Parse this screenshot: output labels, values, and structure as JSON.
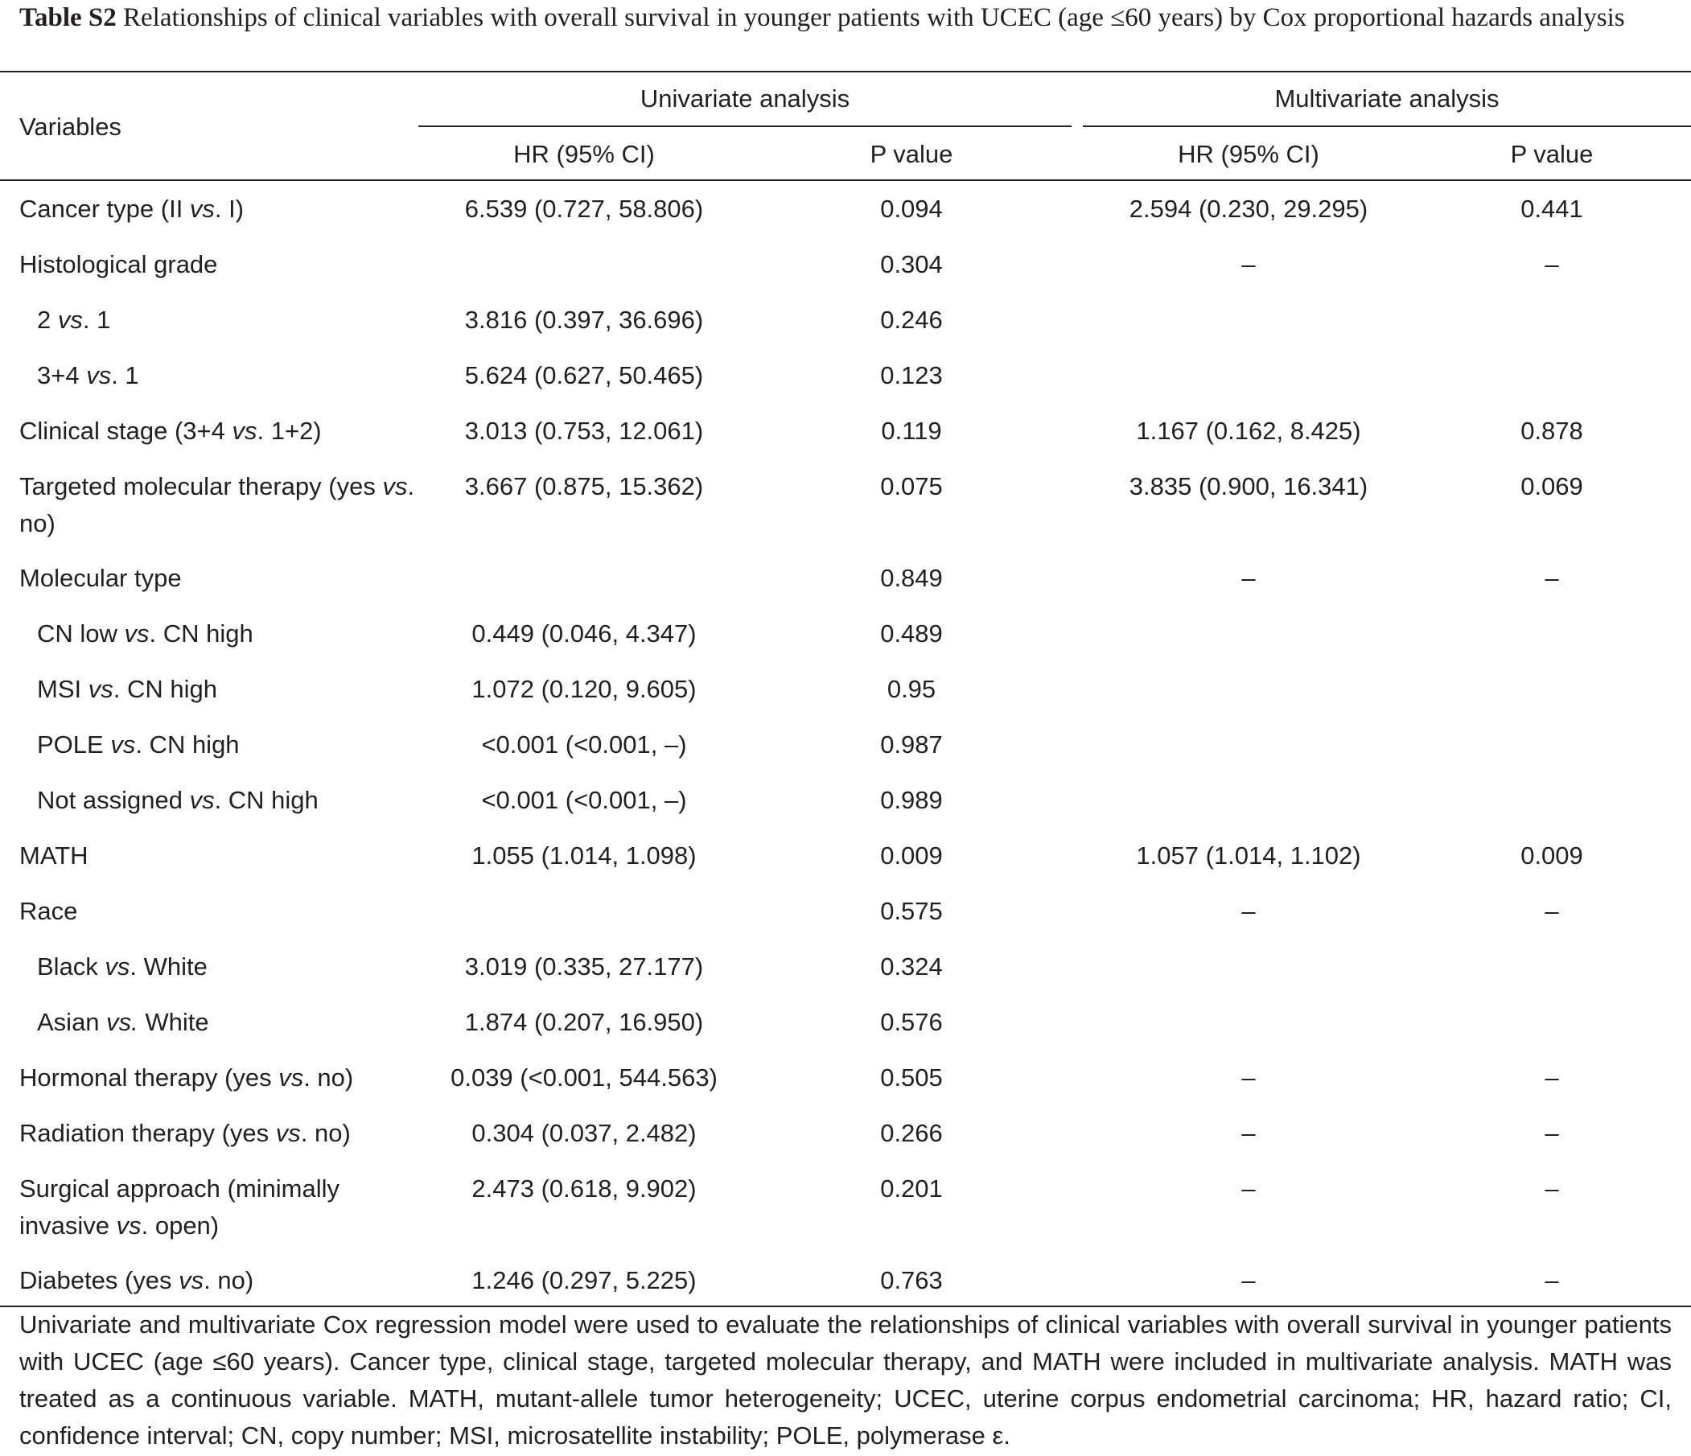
{
  "caption": {
    "label": "Table S2",
    "text": "Relationships of clinical variables with overall survival in younger patients with UCEC (age ≤60 years) by Cox proportional hazards analysis"
  },
  "header": {
    "variables": "Variables",
    "univariate": "Univariate analysis",
    "multivariate": "Multivariate analysis",
    "hr_ci": "HR (95% CI)",
    "p_value": "P value"
  },
  "rows": [
    {
      "pre": "Cancer type (II ",
      "vs": "vs",
      "post": ". I)",
      "indent": false,
      "uni_hr": "6.539 (0.727, 58.806)",
      "uni_p": "0.094",
      "multi_hr": "2.594 (0.230, 29.295)",
      "multi_p": "0.441"
    },
    {
      "pre": "Histological grade",
      "vs": "",
      "post": "",
      "indent": false,
      "uni_hr": "",
      "uni_p": "0.304",
      "multi_hr": "–",
      "multi_p": "–"
    },
    {
      "pre": "2 ",
      "vs": "vs",
      "post": ". 1",
      "indent": true,
      "uni_hr": "3.816 (0.397, 36.696)",
      "uni_p": "0.246",
      "multi_hr": "",
      "multi_p": ""
    },
    {
      "pre": "3+4 ",
      "vs": "vs",
      "post": ". 1",
      "indent": true,
      "uni_hr": "5.624 (0.627, 50.465)",
      "uni_p": "0.123",
      "multi_hr": "",
      "multi_p": ""
    },
    {
      "pre": "Clinical stage (3+4 ",
      "vs": "vs",
      "post": ". 1+2)",
      "indent": false,
      "uni_hr": "3.013 (0.753, 12.061)",
      "uni_p": "0.119",
      "multi_hr": "1.167 (0.162, 8.425)",
      "multi_p": "0.878"
    },
    {
      "pre": "Targeted molecular therapy (yes ",
      "vs": "vs",
      "post": ". no)",
      "indent": false,
      "uni_hr": "3.667 (0.875, 15.362)",
      "uni_p": "0.075",
      "multi_hr": "3.835 (0.900, 16.341)",
      "multi_p": "0.069"
    },
    {
      "pre": "Molecular type",
      "vs": "",
      "post": "",
      "indent": false,
      "uni_hr": "",
      "uni_p": "0.849",
      "multi_hr": "–",
      "multi_p": "–"
    },
    {
      "pre": "CN low ",
      "vs": "vs",
      "post": ". CN high",
      "indent": true,
      "uni_hr": "0.449 (0.046, 4.347)",
      "uni_p": "0.489",
      "multi_hr": "",
      "multi_p": ""
    },
    {
      "pre": "MSI ",
      "vs": "vs",
      "post": ". CN high",
      "indent": true,
      "uni_hr": "1.072 (0.120, 9.605)",
      "uni_p": "0.95",
      "multi_hr": "",
      "multi_p": ""
    },
    {
      "pre": "POLE ",
      "vs": "vs",
      "post": ". CN high",
      "indent": true,
      "uni_hr": "<0.001 (<0.001, –)",
      "uni_p": "0.987",
      "multi_hr": "",
      "multi_p": ""
    },
    {
      "pre": "Not assigned ",
      "vs": "vs",
      "post": ". CN high",
      "indent": true,
      "uni_hr": "<0.001 (<0.001, –)",
      "uni_p": "0.989",
      "multi_hr": "",
      "multi_p": ""
    },
    {
      "pre": "MATH",
      "vs": "",
      "post": "",
      "indent": false,
      "uni_hr": "1.055 (1.014, 1.098)",
      "uni_p": "0.009",
      "multi_hr": "1.057 (1.014, 1.102)",
      "multi_p": "0.009"
    },
    {
      "pre": "Race",
      "vs": "",
      "post": "",
      "indent": false,
      "uni_hr": "",
      "uni_p": "0.575",
      "multi_hr": "–",
      "multi_p": "–"
    },
    {
      "pre": "Black ",
      "vs": "vs",
      "post": ". White",
      "indent": true,
      "uni_hr": "3.019 (0.335, 27.177)",
      "uni_p": "0.324",
      "multi_hr": "",
      "multi_p": ""
    },
    {
      "pre": "Asian ",
      "vs": "vs.",
      "post": " White",
      "indent": true,
      "uni_hr": "1.874 (0.207, 16.950)",
      "uni_p": "0.576",
      "multi_hr": "",
      "multi_p": ""
    },
    {
      "pre": "Hormonal therapy (yes ",
      "vs": "vs",
      "post": ". no)",
      "indent": false,
      "uni_hr": "0.039 (<0.001, 544.563)",
      "uni_p": "0.505",
      "multi_hr": "–",
      "multi_p": "–"
    },
    {
      "pre": "Radiation therapy (yes ",
      "vs": "vs",
      "post": ". no)",
      "indent": false,
      "uni_hr": "0.304 (0.037, 2.482)",
      "uni_p": "0.266",
      "multi_hr": "–",
      "multi_p": "–"
    },
    {
      "pre": "Surgical approach (minimally invasive ",
      "vs": "vs",
      "post": ". open)",
      "indent": false,
      "uni_hr": "2.473 (0.618, 9.902)",
      "uni_p": "0.201",
      "multi_hr": "–",
      "multi_p": "–"
    },
    {
      "pre": "Diabetes (yes ",
      "vs": "vs",
      "post": ". no)",
      "indent": false,
      "uni_hr": "1.246 (0.297, 5.225)",
      "uni_p": "0.763",
      "multi_hr": "–",
      "multi_p": "–"
    }
  ],
  "footnote": "Univariate and multivariate Cox regression model were used to evaluate the relationships of clinical variables with overall survival in younger patients with UCEC (age ≤60 years). Cancer type, clinical stage, targeted molecular therapy, and MATH were included in multivariate analysis. MATH was treated as a continuous variable. MATH, mutant-allele tumor heterogeneity; UCEC, uterine corpus endometrial carcinoma; HR, hazard ratio; CI, confidence interval; CN, copy number; MSI, microsatellite instability; POLE, polymerase ε."
}
